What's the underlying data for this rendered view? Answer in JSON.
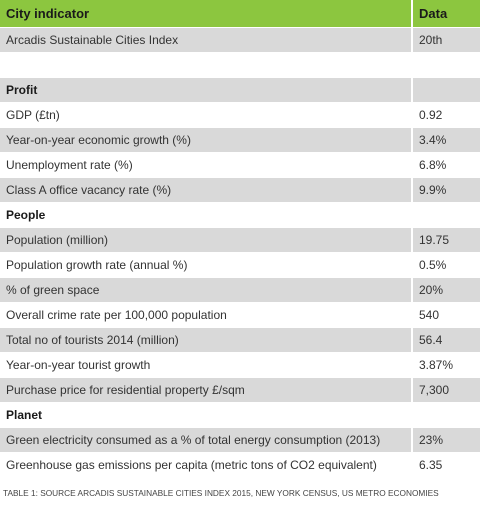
{
  "table": {
    "header": [
      "City indicator",
      "Data"
    ],
    "rows": [
      [
        "Arcadis Sustainable Cities Index",
        "20th"
      ],
      [
        "Profit"
      ],
      [
        "GDP (£tn)",
        "0.92"
      ],
      [
        "Year-on-year economic growth (%)",
        "3.4%"
      ],
      [
        "Unemployment rate (%)",
        "6.8%"
      ],
      [
        "Class A office vacancy rate  (%)",
        "9.9%"
      ],
      [
        "People"
      ],
      [
        "Population (million)",
        "19.75"
      ],
      [
        "Population growth rate (annual %)",
        "0.5%"
      ],
      [
        "% of green space",
        "20%"
      ],
      [
        "Overall crime rate per 100,000 population",
        "540"
      ],
      [
        "Total no of tourists 2014 (million)",
        "56.4"
      ],
      [
        "Year-on-year tourist growth",
        "3.87%"
      ],
      [
        "Purchase price for residential property £/sqm",
        "7,300"
      ],
      [
        "Planet"
      ],
      [
        "Green electricity consumed as a % of total energy consumption (2013)",
        "23%"
      ],
      [
        "Greenhouse gas emissions per capita (metric tons of CO2 equivalent)",
        "6.35"
      ]
    ]
  },
  "caption": "TABLE 1: SOURCE ARCADIS SUSTAINABLE CITIES INDEX 2015, NEW YORK CENSUS, US METRO ECONOMIES"
}
